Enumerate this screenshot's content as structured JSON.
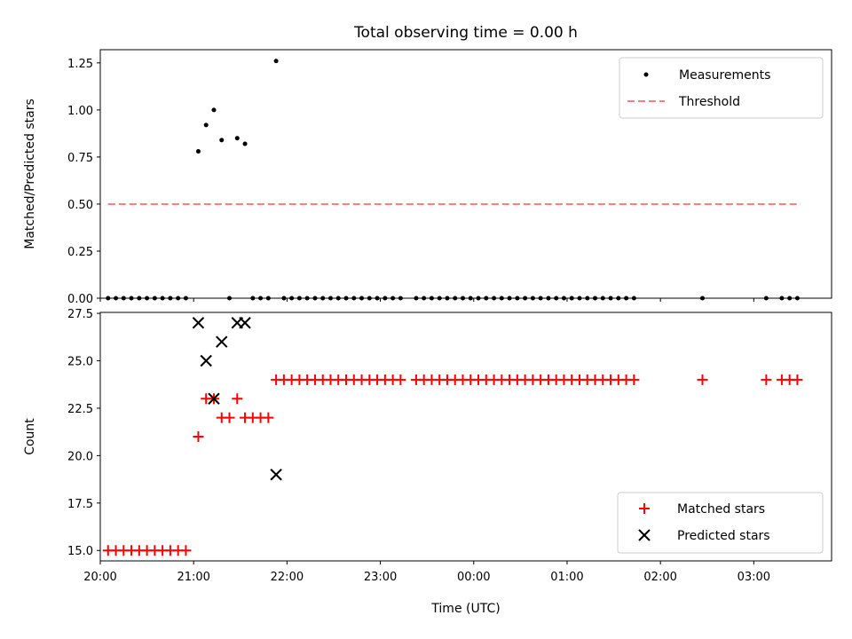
{
  "title": "Total observing time = 0.00 h",
  "chart_data": [
    {
      "type": "scatter",
      "panel": "top",
      "title": "Total observing time = 0.00 h",
      "ylabel": "Matched/Predicted stars",
      "xlabel": "",
      "xlim": [
        "20:00",
        "03:50"
      ],
      "ylim": [
        0,
        1.32
      ],
      "yticks": [
        "0.00",
        "0.25",
        "0.50",
        "0.75",
        "1.00",
        "1.25"
      ],
      "legend_position": "top-right",
      "grid": false,
      "series": [
        {
          "name": "Measurements",
          "style": "dot",
          "color": "#000000",
          "points": [
            [
              "20:05",
              0
            ],
            [
              "20:10",
              0
            ],
            [
              "20:15",
              0
            ],
            [
              "20:20",
              0
            ],
            [
              "20:25",
              0
            ],
            [
              "20:30",
              0
            ],
            [
              "20:35",
              0
            ],
            [
              "20:40",
              0
            ],
            [
              "20:45",
              0
            ],
            [
              "20:50",
              0
            ],
            [
              "20:55",
              0
            ],
            [
              "21:03",
              0.78
            ],
            [
              "21:08",
              0.92
            ],
            [
              "21:13",
              1.0
            ],
            [
              "21:18",
              0.84
            ],
            [
              "21:23",
              0
            ],
            [
              "21:28",
              0.85
            ],
            [
              "21:33",
              0.82
            ],
            [
              "21:38",
              0
            ],
            [
              "21:43",
              0
            ],
            [
              "21:48",
              0
            ],
            [
              "21:53",
              1.26
            ],
            [
              "21:58",
              0
            ],
            [
              "22:03",
              0
            ],
            [
              "22:08",
              0
            ],
            [
              "22:13",
              0
            ],
            [
              "22:18",
              0
            ],
            [
              "22:23",
              0
            ],
            [
              "22:28",
              0
            ],
            [
              "22:33",
              0
            ],
            [
              "22:38",
              0
            ],
            [
              "22:43",
              0
            ],
            [
              "22:48",
              0
            ],
            [
              "22:53",
              0
            ],
            [
              "22:58",
              0
            ],
            [
              "23:03",
              0
            ],
            [
              "23:08",
              0
            ],
            [
              "23:13",
              0
            ],
            [
              "23:23",
              0
            ],
            [
              "23:28",
              0
            ],
            [
              "23:33",
              0
            ],
            [
              "23:38",
              0
            ],
            [
              "23:43",
              0
            ],
            [
              "23:48",
              0
            ],
            [
              "23:53",
              0
            ],
            [
              "23:58",
              0
            ],
            [
              "00:03",
              0
            ],
            [
              "00:08",
              0
            ],
            [
              "00:13",
              0
            ],
            [
              "00:18",
              0
            ],
            [
              "00:23",
              0
            ],
            [
              "00:28",
              0
            ],
            [
              "00:33",
              0
            ],
            [
              "00:38",
              0
            ],
            [
              "00:43",
              0
            ],
            [
              "00:48",
              0
            ],
            [
              "00:53",
              0
            ],
            [
              "00:58",
              0
            ],
            [
              "01:03",
              0
            ],
            [
              "01:08",
              0
            ],
            [
              "01:13",
              0
            ],
            [
              "01:18",
              0
            ],
            [
              "01:23",
              0
            ],
            [
              "01:28",
              0
            ],
            [
              "01:33",
              0
            ],
            [
              "01:38",
              0
            ],
            [
              "01:43",
              0
            ],
            [
              "02:27",
              0
            ],
            [
              "03:08",
              0
            ],
            [
              "03:18",
              0
            ],
            [
              "03:23",
              0
            ],
            [
              "03:28",
              0
            ]
          ]
        },
        {
          "name": "Threshold",
          "style": "dashed-line",
          "color": "#ff7f7f",
          "points": [
            [
              "20:05",
              0.5
            ],
            [
              "03:30",
              0.5
            ]
          ]
        }
      ]
    },
    {
      "type": "scatter",
      "panel": "bottom",
      "xlabel": "Time (UTC)",
      "ylabel": "Count",
      "xlim": [
        "20:00",
        "03:50"
      ],
      "ylim": [
        14.45,
        27.55
      ],
      "yticks": [
        "15.0",
        "17.5",
        "20.0",
        "22.5",
        "25.0",
        "27.5"
      ],
      "xticks": [
        "20:00",
        "21:00",
        "22:00",
        "23:00",
        "00:00",
        "01:00",
        "02:00",
        "03:00"
      ],
      "legend_position": "bottom-right",
      "grid": false,
      "series": [
        {
          "name": "Matched stars",
          "marker": "plus",
          "color": "#ff0000",
          "points": [
            [
              "20:05",
              15
            ],
            [
              "20:10",
              15
            ],
            [
              "20:15",
              15
            ],
            [
              "20:20",
              15
            ],
            [
              "20:25",
              15
            ],
            [
              "20:30",
              15
            ],
            [
              "20:35",
              15
            ],
            [
              "20:40",
              15
            ],
            [
              "20:45",
              15
            ],
            [
              "20:50",
              15
            ],
            [
              "20:55",
              15
            ],
            [
              "21:03",
              21
            ],
            [
              "21:08",
              23
            ],
            [
              "21:13",
              23
            ],
            [
              "21:18",
              22
            ],
            [
              "21:23",
              22
            ],
            [
              "21:28",
              23
            ],
            [
              "21:33",
              22
            ],
            [
              "21:38",
              22
            ],
            [
              "21:43",
              22
            ],
            [
              "21:48",
              22
            ],
            [
              "21:53",
              24
            ],
            [
              "21:58",
              24
            ],
            [
              "22:03",
              24
            ],
            [
              "22:08",
              24
            ],
            [
              "22:13",
              24
            ],
            [
              "22:18",
              24
            ],
            [
              "22:23",
              24
            ],
            [
              "22:28",
              24
            ],
            [
              "22:33",
              24
            ],
            [
              "22:38",
              24
            ],
            [
              "22:43",
              24
            ],
            [
              "22:48",
              24
            ],
            [
              "22:53",
              24
            ],
            [
              "22:58",
              24
            ],
            [
              "23:03",
              24
            ],
            [
              "23:08",
              24
            ],
            [
              "23:13",
              24
            ],
            [
              "23:23",
              24
            ],
            [
              "23:28",
              24
            ],
            [
              "23:33",
              24
            ],
            [
              "23:38",
              24
            ],
            [
              "23:43",
              24
            ],
            [
              "23:48",
              24
            ],
            [
              "23:53",
              24
            ],
            [
              "23:58",
              24
            ],
            [
              "00:03",
              24
            ],
            [
              "00:08",
              24
            ],
            [
              "00:13",
              24
            ],
            [
              "00:18",
              24
            ],
            [
              "00:23",
              24
            ],
            [
              "00:28",
              24
            ],
            [
              "00:33",
              24
            ],
            [
              "00:38",
              24
            ],
            [
              "00:43",
              24
            ],
            [
              "00:48",
              24
            ],
            [
              "00:53",
              24
            ],
            [
              "00:58",
              24
            ],
            [
              "01:03",
              24
            ],
            [
              "01:08",
              24
            ],
            [
              "01:13",
              24
            ],
            [
              "01:18",
              24
            ],
            [
              "01:23",
              24
            ],
            [
              "01:28",
              24
            ],
            [
              "01:33",
              24
            ],
            [
              "01:38",
              24
            ],
            [
              "01:43",
              24
            ],
            [
              "02:27",
              24
            ],
            [
              "03:08",
              24
            ],
            [
              "03:18",
              24
            ],
            [
              "03:23",
              24
            ],
            [
              "03:28",
              24
            ]
          ]
        },
        {
          "name": "Predicted stars",
          "marker": "x",
          "color": "#000000",
          "points": [
            [
              "21:03",
              27
            ],
            [
              "21:08",
              25
            ],
            [
              "21:13",
              23
            ],
            [
              "21:18",
              26
            ],
            [
              "21:28",
              27
            ],
            [
              "21:33",
              27
            ],
            [
              "21:53",
              19
            ]
          ]
        }
      ]
    }
  ]
}
